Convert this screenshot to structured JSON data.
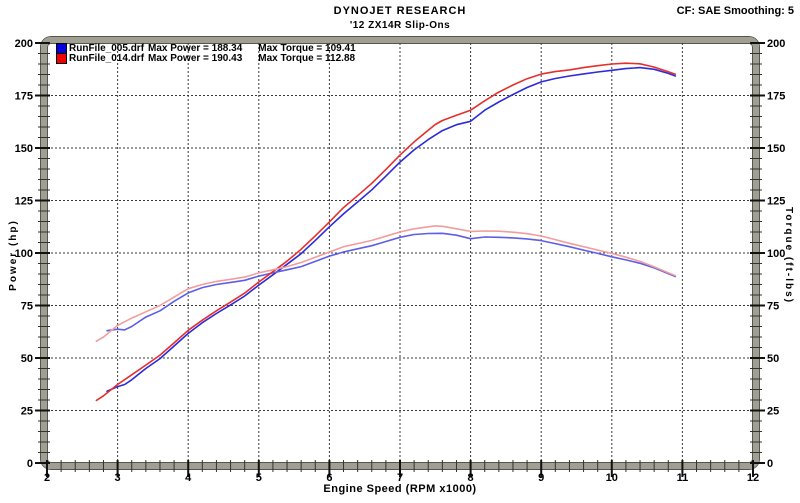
{
  "header": {
    "brand": "DYNOJET RESEARCH",
    "subtitle": "'12 ZX14R Slip-Ons",
    "settings": "CF: SAE  Smoothing: 5"
  },
  "legend": {
    "runs": [
      {
        "file": "RunFile_005.drf",
        "power_label": "Max Power = 188.34",
        "torque_label": "Max Torque = 109.41",
        "swatch_color": "#0000dd"
      },
      {
        "file": "RunFile_014.drf",
        "power_label": "Max Power = 190.43",
        "torque_label": "Max Torque = 112.88",
        "swatch_color": "#ee0000"
      }
    ]
  },
  "chart_data": {
    "type": "line",
    "title": "DYNOJET RESEARCH",
    "subtitle": "'12 ZX14R Slip-Ons",
    "correction_note": "CF: SAE  Smoothing: 5",
    "xlabel": "Engine Speed (RPM x1000)",
    "ylabel_left": "Power (hp)",
    "ylabel_right": "Torque (ft-lbs)",
    "xlim": [
      2,
      12
    ],
    "ylim": [
      0,
      200
    ],
    "x_major_ticks": [
      2,
      3,
      4,
      5,
      6,
      7,
      8,
      9,
      10,
      11,
      12
    ],
    "y_major_ticks": [
      0,
      25,
      50,
      75,
      100,
      125,
      150,
      175,
      200
    ],
    "x_minor_step": 0.2,
    "y_minor_step": 5,
    "grid": "dashed",
    "grid_color": "#3a3a3a",
    "legend_position": "top-left-inside",
    "max_values": {
      "runfile005_max_power_hp": 188.34,
      "runfile005_max_torque_ftlbs": 109.41,
      "runfile014_max_power_hp": 190.43,
      "runfile014_max_torque_ftlbs": 112.88
    },
    "series": [
      {
        "id": "runfile005-power",
        "name": "RunFile_005.drf Power (hp)",
        "color": "#2b2bdb",
        "points": [
          [
            2.85,
            34.2
          ],
          [
            3.0,
            36.4
          ],
          [
            3.1,
            37.4
          ],
          [
            3.2,
            39.6
          ],
          [
            3.4,
            45.0
          ],
          [
            3.6,
            49.7
          ],
          [
            3.8,
            55.7
          ],
          [
            4.0,
            61.7
          ],
          [
            4.2,
            66.8
          ],
          [
            4.4,
            71.2
          ],
          [
            4.6,
            75.3
          ],
          [
            4.8,
            79.5
          ],
          [
            5.0,
            84.7
          ],
          [
            5.2,
            89.6
          ],
          [
            5.4,
            94.6
          ],
          [
            5.6,
            99.7
          ],
          [
            5.8,
            106.0
          ],
          [
            6.0,
            112.5
          ],
          [
            6.2,
            118.6
          ],
          [
            6.4,
            124.3
          ],
          [
            6.6,
            130.1
          ],
          [
            6.8,
            136.6
          ],
          [
            7.0,
            143.3
          ],
          [
            7.2,
            149.1
          ],
          [
            7.4,
            154.0
          ],
          [
            7.6,
            158.3
          ],
          [
            7.8,
            161.1
          ],
          [
            8.0,
            162.7
          ],
          [
            8.2,
            168.0
          ],
          [
            8.4,
            171.9
          ],
          [
            8.6,
            175.5
          ],
          [
            8.8,
            178.8
          ],
          [
            9.0,
            181.5
          ],
          [
            9.2,
            183.1
          ],
          [
            9.4,
            184.3
          ],
          [
            9.6,
            185.3
          ],
          [
            9.8,
            186.2
          ],
          [
            10.0,
            187.0
          ],
          [
            10.2,
            187.8
          ],
          [
            10.4,
            188.3
          ],
          [
            10.6,
            187.5
          ],
          [
            10.8,
            185.5
          ],
          [
            10.9,
            184.3
          ]
        ]
      },
      {
        "id": "runfile005-torque",
        "name": "RunFile_005.drf Torque (ft-lbs)",
        "color": "#5d5de6",
        "points": [
          [
            2.85,
            63.0
          ],
          [
            3.0,
            63.7
          ],
          [
            3.1,
            63.4
          ],
          [
            3.2,
            65.0
          ],
          [
            3.4,
            69.5
          ],
          [
            3.6,
            72.5
          ],
          [
            3.8,
            77.0
          ],
          [
            4.0,
            81.0
          ],
          [
            4.2,
            83.5
          ],
          [
            4.4,
            85.0
          ],
          [
            4.6,
            86.0
          ],
          [
            4.8,
            87.0
          ],
          [
            5.0,
            89.0
          ],
          [
            5.2,
            90.5
          ],
          [
            5.4,
            92.0
          ],
          [
            5.6,
            93.5
          ],
          [
            5.8,
            96.0
          ],
          [
            6.0,
            98.5
          ],
          [
            6.2,
            100.5
          ],
          [
            6.4,
            102.0
          ],
          [
            6.6,
            103.5
          ],
          [
            6.8,
            105.5
          ],
          [
            7.0,
            107.5
          ],
          [
            7.2,
            108.8
          ],
          [
            7.4,
            109.3
          ],
          [
            7.6,
            109.4
          ],
          [
            7.8,
            108.5
          ],
          [
            8.0,
            106.8
          ],
          [
            8.2,
            107.6
          ],
          [
            8.4,
            107.5
          ],
          [
            8.6,
            107.2
          ],
          [
            8.8,
            106.7
          ],
          [
            9.0,
            105.9
          ],
          [
            9.2,
            104.5
          ],
          [
            9.4,
            103.0
          ],
          [
            9.6,
            101.4
          ],
          [
            9.8,
            99.8
          ],
          [
            10.0,
            98.2
          ],
          [
            10.2,
            96.7
          ],
          [
            10.4,
            95.1
          ],
          [
            10.6,
            92.9
          ],
          [
            10.8,
            90.2
          ],
          [
            10.9,
            88.8
          ]
        ]
      },
      {
        "id": "runfile014-power",
        "name": "RunFile_014.drf Power (hp)",
        "color": "#e62e2e",
        "points": [
          [
            2.7,
            29.8
          ],
          [
            2.8,
            32.0
          ],
          [
            3.0,
            37.4
          ],
          [
            3.2,
            42.0
          ],
          [
            3.4,
            46.6
          ],
          [
            3.6,
            51.4
          ],
          [
            3.8,
            57.2
          ],
          [
            4.0,
            63.2
          ],
          [
            4.2,
            68.0
          ],
          [
            4.4,
            72.5
          ],
          [
            4.6,
            76.6
          ],
          [
            4.8,
            80.9
          ],
          [
            5.0,
            86.2
          ],
          [
            5.2,
            91.1
          ],
          [
            5.4,
            96.1
          ],
          [
            5.6,
            101.8
          ],
          [
            5.8,
            108.2
          ],
          [
            6.0,
            114.8
          ],
          [
            6.2,
            121.6
          ],
          [
            6.4,
            127.3
          ],
          [
            6.6,
            133.2
          ],
          [
            6.8,
            139.8
          ],
          [
            7.0,
            146.6
          ],
          [
            7.2,
            152.9
          ],
          [
            7.4,
            158.5
          ],
          [
            7.5,
            161.2
          ],
          [
            7.6,
            163.1
          ],
          [
            7.8,
            165.6
          ],
          [
            8.0,
            168.0
          ],
          [
            8.2,
            172.5
          ],
          [
            8.4,
            176.6
          ],
          [
            8.6,
            180.0
          ],
          [
            8.8,
            183.0
          ],
          [
            9.0,
            185.2
          ],
          [
            9.2,
            186.4
          ],
          [
            9.4,
            187.2
          ],
          [
            9.6,
            188.3
          ],
          [
            9.8,
            189.2
          ],
          [
            10.0,
            190.0
          ],
          [
            10.2,
            190.4
          ],
          [
            10.4,
            190.1
          ],
          [
            10.6,
            188.5
          ],
          [
            10.8,
            186.3
          ],
          [
            10.9,
            185.1
          ]
        ]
      },
      {
        "id": "runfile014-torque",
        "name": "RunFile_014.drf Torque (ft-lbs)",
        "color": "#f29d9d",
        "points": [
          [
            2.7,
            58.0
          ],
          [
            2.8,
            60.0
          ],
          [
            3.0,
            65.5
          ],
          [
            3.2,
            69.0
          ],
          [
            3.4,
            72.0
          ],
          [
            3.6,
            75.0
          ],
          [
            3.8,
            79.0
          ],
          [
            4.0,
            83.0
          ],
          [
            4.2,
            85.0
          ],
          [
            4.4,
            86.5
          ],
          [
            4.6,
            87.5
          ],
          [
            4.8,
            88.5
          ],
          [
            5.0,
            90.5
          ],
          [
            5.2,
            92.0
          ],
          [
            5.4,
            93.5
          ],
          [
            5.6,
            95.5
          ],
          [
            5.8,
            98.0
          ],
          [
            6.0,
            100.5
          ],
          [
            6.2,
            103.0
          ],
          [
            6.4,
            104.5
          ],
          [
            6.6,
            106.0
          ],
          [
            6.8,
            108.0
          ],
          [
            7.0,
            110.0
          ],
          [
            7.2,
            111.5
          ],
          [
            7.4,
            112.5
          ],
          [
            7.5,
            112.9
          ],
          [
            7.6,
            112.7
          ],
          [
            7.8,
            111.5
          ],
          [
            8.0,
            110.3
          ],
          [
            8.2,
            110.5
          ],
          [
            8.4,
            110.4
          ],
          [
            8.6,
            109.9
          ],
          [
            8.8,
            109.2
          ],
          [
            9.0,
            108.1
          ],
          [
            9.2,
            106.4
          ],
          [
            9.4,
            104.6
          ],
          [
            9.6,
            103.0
          ],
          [
            9.8,
            101.4
          ],
          [
            10.0,
            99.8
          ],
          [
            10.2,
            98.0
          ],
          [
            10.4,
            96.0
          ],
          [
            10.6,
            93.4
          ],
          [
            10.8,
            90.6
          ],
          [
            10.9,
            89.2
          ]
        ]
      }
    ]
  }
}
